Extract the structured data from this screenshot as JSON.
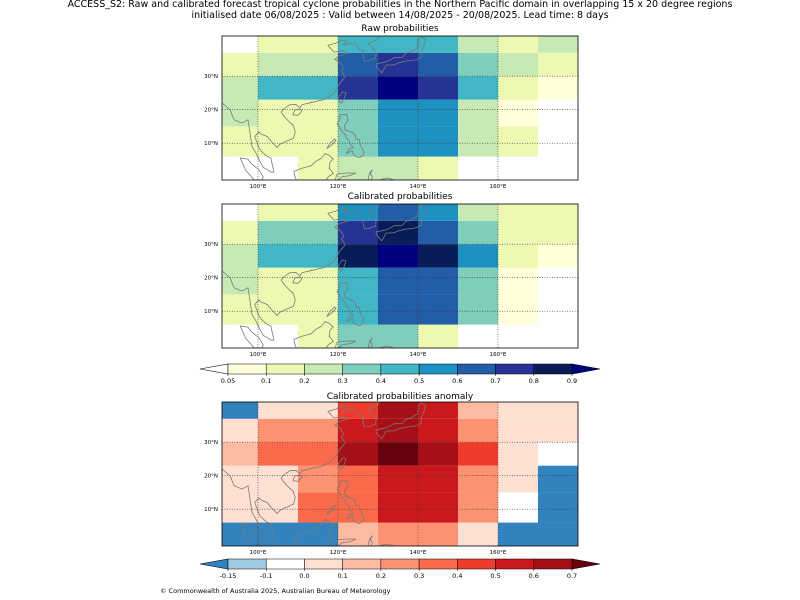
{
  "suptitle": {
    "line1": "ACCESS_S2: Raw and calibrated forecast tropical cyclone probabilities in the Northern Pacific domain in overlapping 15 x 20 degree regions",
    "line2": "initialised date 06/08/2025 :  Valid between 14/08/2025 - 20/08/2025. Lead time: 8 days"
  },
  "copyright": "© Commonwealth of Australia 2025, Australian Bureau of Meteorology",
  "chart_data": [
    {
      "type": "heatmap",
      "title": "Raw probabilities",
      "x_edges": [
        91,
        100,
        110,
        120,
        130,
        140,
        150,
        160,
        170,
        180
      ],
      "y_edges": [
        -1,
        6,
        15,
        23,
        30,
        37,
        42
      ],
      "xticks": [
        100,
        120,
        140,
        160
      ],
      "xtick_labels": [
        "100°E",
        "120°E",
        "140°E",
        "160°E"
      ],
      "yticks": [
        10,
        20,
        30
      ],
      "ytick_labels": [
        "10°N",
        "20°N",
        "30°N"
      ],
      "grid": true,
      "rows_south_to_north": [
        [
          0.04,
          0.04,
          0.1,
          0.2,
          0.2,
          0.1,
          0.04,
          0.04,
          0.04
        ],
        [
          0.1,
          0.1,
          0.1,
          0.3,
          0.5,
          0.5,
          0.2,
          0.1,
          0.04
        ],
        [
          0.2,
          0.1,
          0.1,
          0.3,
          0.5,
          0.5,
          0.2,
          0.05,
          0.04
        ],
        [
          0.2,
          0.4,
          0.4,
          0.7,
          0.9,
          0.7,
          0.4,
          0.1,
          0.05
        ],
        [
          0.1,
          0.2,
          0.2,
          0.6,
          0.7,
          0.6,
          0.3,
          0.2,
          0.1
        ],
        [
          0.04,
          0.1,
          0.1,
          0.4,
          0.4,
          0.4,
          0.2,
          0.1,
          0.2
        ]
      ]
    },
    {
      "type": "heatmap",
      "title": "Calibrated probabilities",
      "x_edges": [
        91,
        100,
        110,
        120,
        130,
        140,
        150,
        160,
        170,
        180
      ],
      "y_edges": [
        -1,
        6,
        15,
        23,
        30,
        37,
        42
      ],
      "xticks": [
        100,
        120,
        140,
        160
      ],
      "xtick_labels": [
        "100°E",
        "120°E",
        "140°E",
        "160°E"
      ],
      "yticks": [
        10,
        20,
        30
      ],
      "ytick_labels": [
        "10°N",
        "20°N",
        "30°N"
      ],
      "grid": true,
      "rows_south_to_north": [
        [
          0.04,
          0.04,
          0.1,
          0.3,
          0.3,
          0.1,
          0.04,
          0.04,
          0.04
        ],
        [
          0.1,
          0.1,
          0.1,
          0.4,
          0.6,
          0.6,
          0.3,
          0.05,
          0.04
        ],
        [
          0.2,
          0.1,
          0.1,
          0.4,
          0.6,
          0.6,
          0.3,
          0.05,
          0.04
        ],
        [
          0.2,
          0.4,
          0.4,
          0.8,
          0.9,
          0.8,
          0.5,
          0.1,
          0.05
        ],
        [
          0.1,
          0.3,
          0.3,
          0.7,
          0.8,
          0.6,
          0.3,
          0.1,
          0.1
        ],
        [
          0.04,
          0.1,
          0.1,
          0.5,
          0.6,
          0.5,
          0.2,
          0.1,
          0.1
        ]
      ]
    },
    {
      "type": "heatmap",
      "title": "Calibrated probabilities anomaly",
      "x_edges": [
        91,
        100,
        110,
        120,
        130,
        140,
        150,
        160,
        170,
        180
      ],
      "y_edges": [
        -1,
        6,
        15,
        23,
        30,
        37,
        42
      ],
      "xticks": [
        100,
        120,
        140,
        160
      ],
      "xtick_labels": [
        "100°E",
        "120°E",
        "140°E",
        "160°E"
      ],
      "yticks": [
        10,
        20,
        30
      ],
      "ytick_labels": [
        "10°N",
        "20°N",
        "30°N"
      ],
      "grid": true,
      "rows_south_to_north": [
        [
          -0.2,
          -0.2,
          -0.2,
          0.1,
          0.2,
          0.2,
          0.0,
          -0.2,
          -0.2
        ],
        [
          0.0,
          0.0,
          0.3,
          0.3,
          0.5,
          0.5,
          0.2,
          -0.1,
          -0.2
        ],
        [
          0.0,
          0.0,
          0.2,
          0.3,
          0.5,
          0.5,
          0.2,
          0.0,
          -0.2
        ],
        [
          0.1,
          0.3,
          0.3,
          0.6,
          0.7,
          0.6,
          0.4,
          0.0,
          -0.1
        ],
        [
          0.0,
          0.2,
          0.2,
          0.5,
          0.6,
          0.5,
          0.2,
          0.0,
          0.0
        ],
        [
          -0.2,
          0.0,
          0.0,
          0.4,
          0.6,
          0.5,
          0.1,
          0.0,
          0.0
        ]
      ]
    }
  ],
  "colorbars": {
    "probability": {
      "levels": [
        0.05,
        0.1,
        0.2,
        0.3,
        0.4,
        0.5,
        0.6,
        0.7,
        0.8,
        0.9
      ],
      "tick_labels": [
        "0.05",
        "0.1",
        "0.2",
        "0.3",
        "0.4",
        "0.5",
        "0.6",
        "0.7",
        "0.8",
        "0.9"
      ],
      "under_color": "#ffffff",
      "colors": [
        "#ffffd9",
        "#edf8b1",
        "#c7e9b4",
        "#7fcdbb",
        "#41b6c4",
        "#1d91c0",
        "#225ea8",
        "#253494",
        "#081d58"
      ],
      "over_color": "#000080",
      "extend": "both"
    },
    "anomaly": {
      "levels": [
        -0.15,
        -0.1,
        0.0,
        0.1,
        0.2,
        0.3,
        0.4,
        0.5,
        0.6,
        0.7
      ],
      "tick_labels": [
        "-0.15",
        "-0.1",
        "0.0",
        "0.1",
        "0.2",
        "0.3",
        "0.4",
        "0.5",
        "0.6",
        "0.7"
      ],
      "under_color": "#3182bd",
      "colors": [
        "#9ecae1",
        "#ffffff",
        "#fee0d2",
        "#fcbba1",
        "#fc9272",
        "#fb6a4a",
        "#ef3b2c",
        "#cb181d",
        "#a50f15"
      ],
      "over_color": "#67000d",
      "extend": "both"
    }
  }
}
